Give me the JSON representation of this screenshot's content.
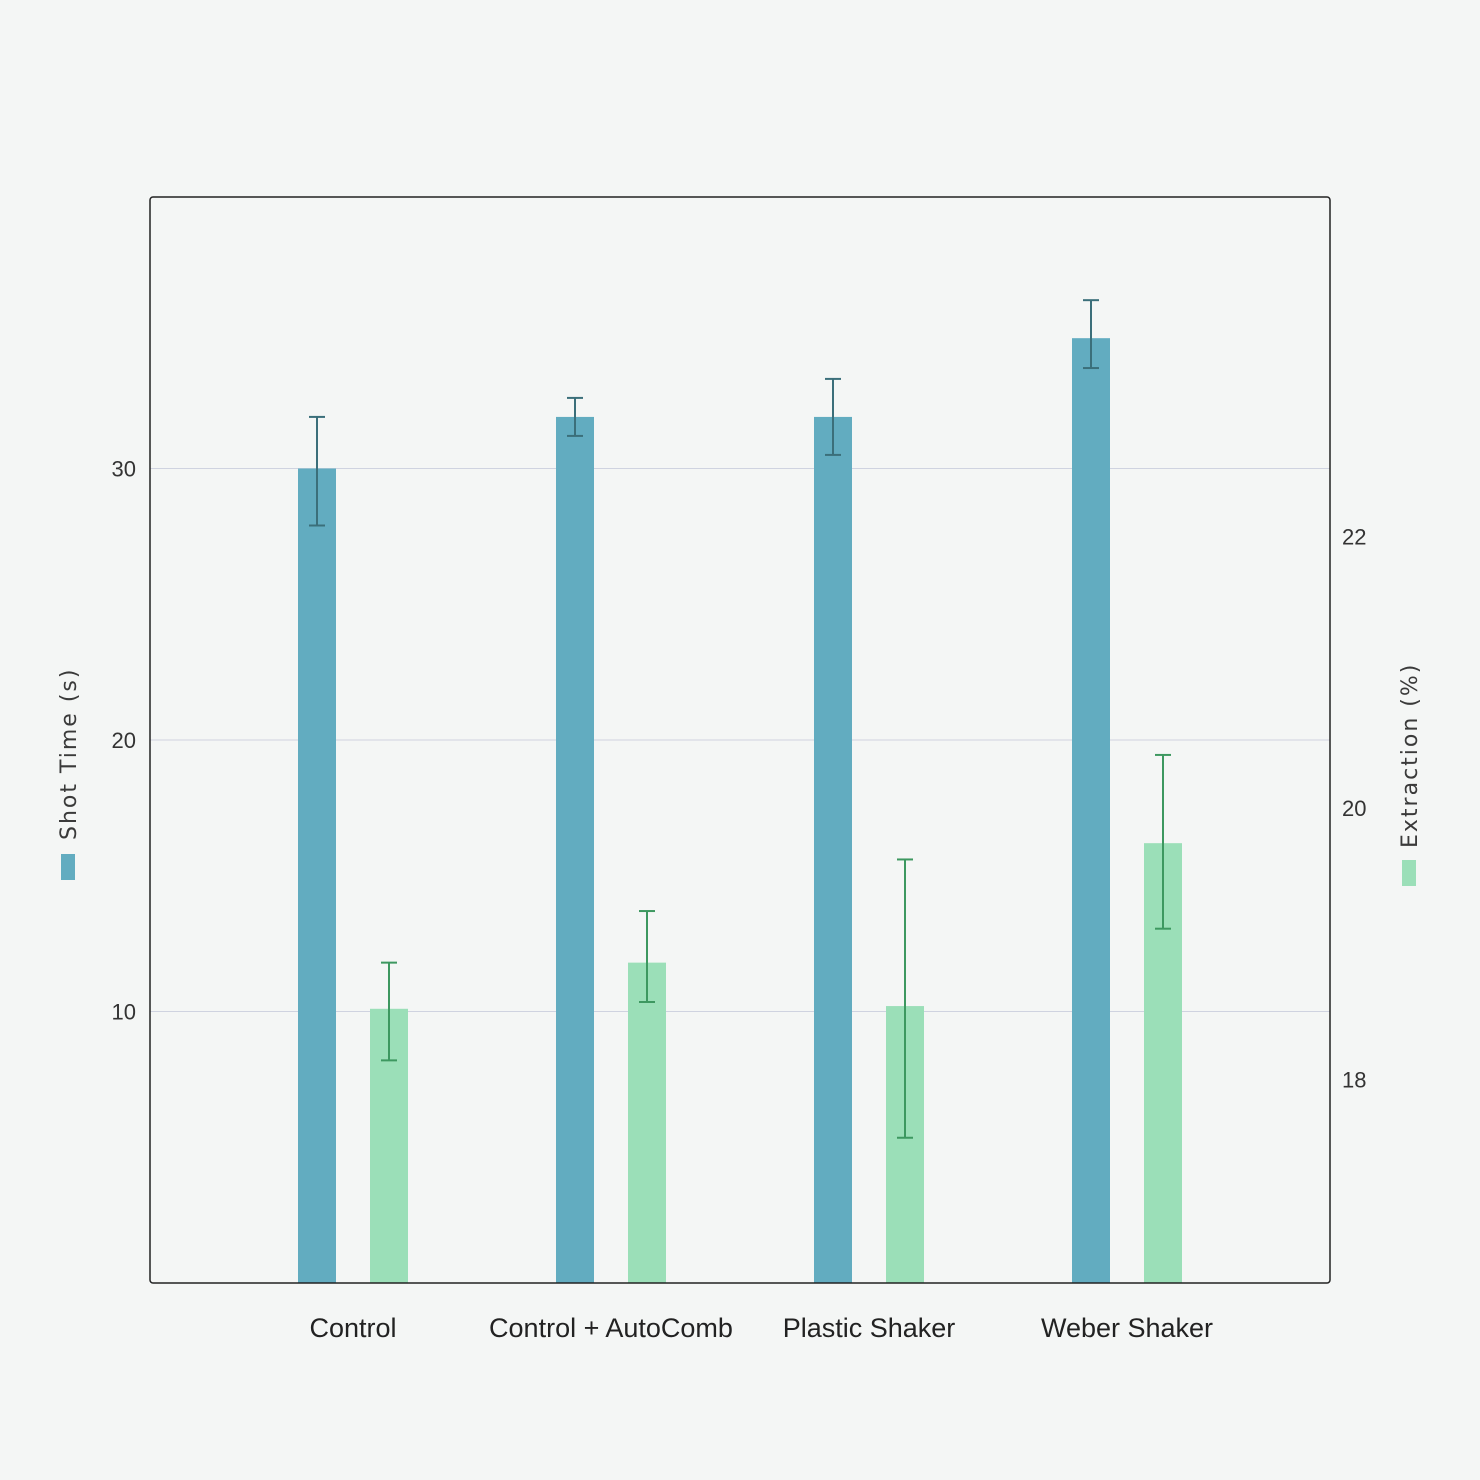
{
  "chart_data": {
    "type": "bar",
    "categories": [
      "Control",
      "Control + AutoComb",
      "Plastic Shaker",
      "Weber Shaker"
    ],
    "series": [
      {
        "name": "Shot Time (s)",
        "axis": "left",
        "color": "#62acc0",
        "error_color": "#3b6f7a",
        "values": [
          30.0,
          31.9,
          31.9,
          34.8
        ],
        "error_low": [
          27.9,
          31.2,
          30.5,
          33.7
        ],
        "error_high": [
          31.9,
          32.6,
          33.3,
          36.2
        ]
      },
      {
        "name": "Extraction (%)",
        "axis": "right",
        "color": "#9bdfb8",
        "error_color": "#3d9860",
        "values": [
          18.52,
          18.86,
          18.54,
          19.74
        ],
        "error_low": [
          18.14,
          18.57,
          17.57,
          19.11
        ],
        "error_high": [
          18.86,
          19.24,
          19.62,
          20.39
        ]
      }
    ],
    "y_left": {
      "label": "Shot Time (s)",
      "ticks": [
        10,
        20,
        30
      ],
      "range": [
        0,
        40
      ]
    },
    "y_right": {
      "label": "Extraction (%)",
      "ticks": [
        18,
        20,
        22
      ],
      "range": [
        16.5,
        24.5
      ]
    },
    "grid": true
  }
}
